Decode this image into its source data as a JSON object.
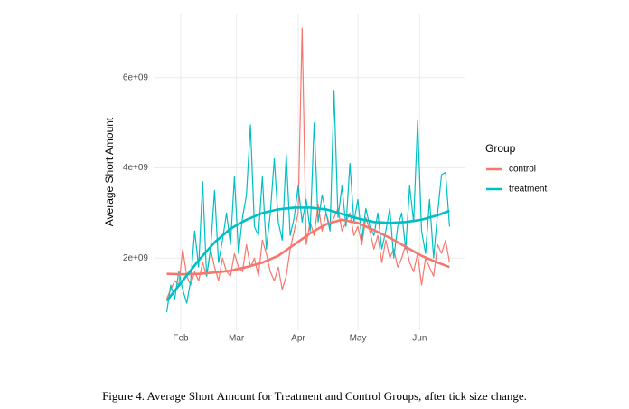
{
  "chart_data": {
    "type": "line",
    "y_label": "Average Short Amount",
    "legend_title": "Group",
    "legend": "right",
    "grid": true,
    "x": [
      25,
      27,
      29,
      31,
      33,
      35,
      37,
      39,
      41,
      43,
      45,
      47,
      49,
      51,
      53,
      55,
      57,
      59,
      61,
      63,
      65,
      67,
      69,
      71,
      73,
      75,
      77,
      79,
      81,
      83,
      85,
      87,
      89,
      91,
      93,
      95,
      97,
      99,
      101,
      103,
      105,
      107,
      109,
      111,
      113,
      115,
      117,
      119,
      121,
      123,
      125,
      127,
      129,
      131,
      133,
      135,
      137,
      139,
      141,
      143,
      145,
      147,
      149,
      151,
      153,
      155,
      157,
      159,
      161,
      163,
      165,
      167
    ],
    "xlim": [
      18.4,
      175
    ],
    "xticks": [
      {
        "value": 32,
        "label": "Feb"
      },
      {
        "value": 60,
        "label": "Mar"
      },
      {
        "value": 91,
        "label": "Apr"
      },
      {
        "value": 121,
        "label": "May"
      },
      {
        "value": 152,
        "label": "Jun"
      }
    ],
    "ylim": [
      400000000.0,
      7420000000.0
    ],
    "yticks": [
      {
        "value": 2000000000.0,
        "label": "2e+09"
      },
      {
        "value": 4000000000.0,
        "label": "4e+09"
      },
      {
        "value": 6000000000.0,
        "label": "6e+09"
      }
    ],
    "series": [
      {
        "name": "control",
        "color": "#F8766D",
        "values": [
          1100000000.0,
          1300000000.0,
          1500000000.0,
          1400000000.0,
          2200000000.0,
          1600000000.0,
          1400000000.0,
          1700000000.0,
          1500000000.0,
          1900000000.0,
          1600000000.0,
          2200000000.0,
          1800000000.0,
          1500000000.0,
          2000000000.0,
          1700000000.0,
          1600000000.0,
          2100000000.0,
          1800000000.0,
          1700000000.0,
          2300000000.0,
          1800000000.0,
          2000000000.0,
          1600000000.0,
          2400000000.0,
          2100000000.0,
          1700000000.0,
          1500000000.0,
          1800000000.0,
          1300000000.0,
          1600000000.0,
          2200000000.0,
          2600000000.0,
          3000000000.0,
          7100000000.0,
          2300000000.0,
          2800000000.0,
          2500000000.0,
          3200000000.0,
          2600000000.0,
          3000000000.0,
          2700000000.0,
          2900000000.0,
          3100000000.0,
          2600000000.0,
          2800000000.0,
          3000000000.0,
          2500000000.0,
          2700000000.0,
          2300000000.0,
          2900000000.0,
          2600000000.0,
          2200000000.0,
          2500000000.0,
          1900000000.0,
          2400000000.0,
          2000000000.0,
          2200000000.0,
          1800000000.0,
          2000000000.0,
          2300000000.0,
          1900000000.0,
          1700000000.0,
          2100000000.0,
          1400000000.0,
          2000000000.0,
          1800000000.0,
          1600000000.0,
          2300000000.0,
          2100000000.0,
          2400000000.0,
          1900000000.0
        ],
        "smooth": {
          "x": [
            25,
            33,
            41,
            49,
            57,
            65,
            73,
            81,
            89,
            97,
            105,
            113,
            121,
            129,
            137,
            145,
            153,
            161,
            167
          ],
          "values": [
            1650000000.0,
            1640000000.0,
            1650000000.0,
            1680000000.0,
            1720000000.0,
            1800000000.0,
            1900000000.0,
            2050000000.0,
            2300000000.0,
            2550000000.0,
            2750000000.0,
            2850000000.0,
            2780000000.0,
            2620000000.0,
            2450000000.0,
            2250000000.0,
            2050000000.0,
            1900000000.0,
            1800000000.0
          ]
        }
      },
      {
        "name": "treatment",
        "color": "#00BFC4",
        "values": [
          800000000.0,
          1400000000.0,
          1100000000.0,
          1700000000.0,
          1300000000.0,
          1000000000.0,
          1500000000.0,
          2600000000.0,
          1800000000.0,
          3700000000.0,
          1600000000.0,
          2200000000.0,
          3500000000.0,
          1900000000.0,
          2400000000.0,
          3000000000.0,
          2300000000.0,
          3800000000.0,
          2100000000.0,
          2900000000.0,
          3400000000.0,
          4950000000.0,
          2700000000.0,
          2500000000.0,
          3800000000.0,
          2200000000.0,
          3000000000.0,
          4200000000.0,
          2800000000.0,
          2400000000.0,
          4300000000.0,
          2500000000.0,
          2900000000.0,
          3600000000.0,
          2800000000.0,
          3300000000.0,
          2600000000.0,
          5000000000.0,
          2800000000.0,
          3400000000.0,
          3000000000.0,
          2600000000.0,
          5700000000.0,
          2900000000.0,
          3600000000.0,
          2700000000.0,
          4100000000.0,
          2800000000.0,
          3300000000.0,
          2400000000.0,
          3100000000.0,
          2700000000.0,
          2500000000.0,
          3000000000.0,
          2200000000.0,
          2600000000.0,
          3100000000.0,
          2000000000.0,
          2700000000.0,
          3000000000.0,
          2200000000.0,
          3600000000.0,
          2800000000.0,
          5050000000.0,
          2600000000.0,
          2100000000.0,
          3300000000.0,
          2000000000.0,
          3000000000.0,
          3850000000.0,
          3900000000.0,
          2700000000.0
        ],
        "smooth": {
          "x": [
            25,
            33,
            41,
            49,
            57,
            65,
            73,
            81,
            89,
            97,
            105,
            113,
            121,
            129,
            137,
            145,
            153,
            161,
            167
          ],
          "values": [
            1050000000.0,
            1500000000.0,
            1950000000.0,
            2350000000.0,
            2650000000.0,
            2850000000.0,
            3000000000.0,
            3080000000.0,
            3120000000.0,
            3120000000.0,
            3080000000.0,
            2980000000.0,
            2880000000.0,
            2800000000.0,
            2780000000.0,
            2800000000.0,
            2850000000.0,
            2950000000.0,
            3050000000.0
          ]
        }
      }
    ]
  },
  "caption": "Figure 4. Average Short Amount for Treatment and Control Groups, after tick size change."
}
